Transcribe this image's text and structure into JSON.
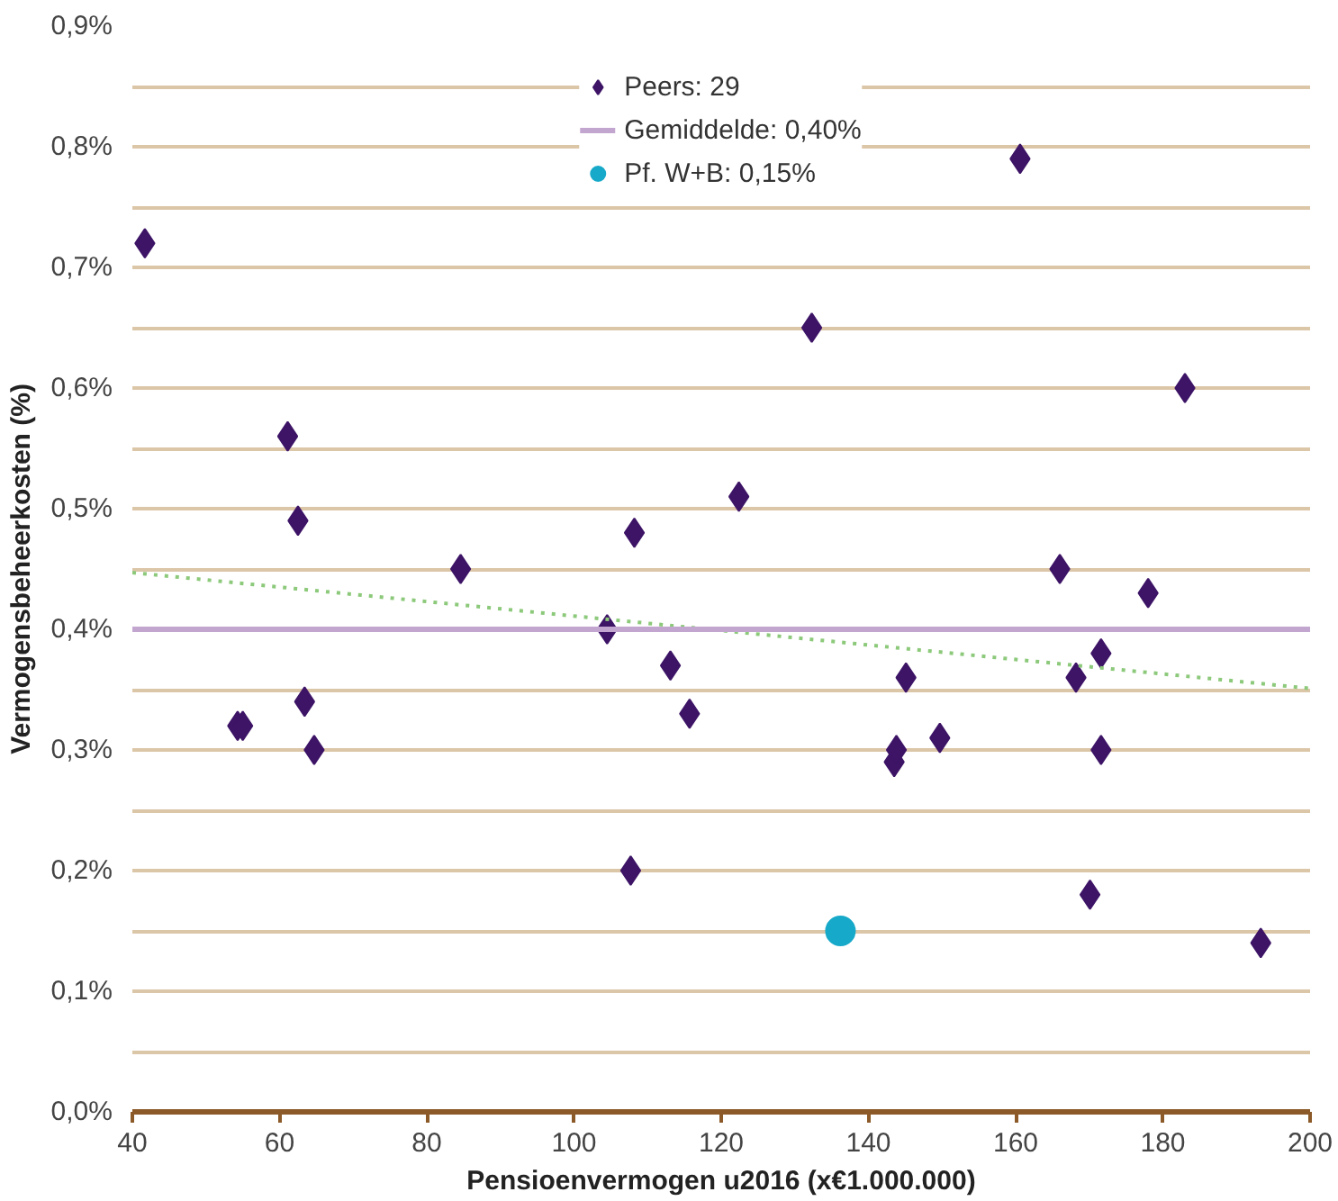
{
  "chart_data": {
    "type": "scatter",
    "xlabel": "Pensioenvermogen u2016 (x€1.000.000)",
    "ylabel": "Vermogensbeheerkosten (%)",
    "xlim": [
      40,
      200
    ],
    "xticks": [
      40,
      60,
      80,
      100,
      120,
      140,
      160,
      180,
      200
    ],
    "ylim": [
      0,
      0.9
    ],
    "yticks": [
      {
        "value": 0,
        "label": "0,0%"
      },
      {
        "value": 0.05,
        "label": null
      },
      {
        "value": 0.1,
        "label": "0,1%"
      },
      {
        "value": 0.15,
        "label": null
      },
      {
        "value": 0.2,
        "label": "0,2%"
      },
      {
        "value": 0.25,
        "label": null
      },
      {
        "value": 0.3,
        "label": "0,3%"
      },
      {
        "value": 0.35,
        "label": null
      },
      {
        "value": 0.4,
        "label": "0,4%"
      },
      {
        "value": 0.45,
        "label": null
      },
      {
        "value": 0.5,
        "label": "0,5%"
      },
      {
        "value": 0.55,
        "label": null
      },
      {
        "value": 0.6,
        "label": "0,6%"
      },
      {
        "value": 0.65,
        "label": null
      },
      {
        "value": 0.7,
        "label": "0,7%"
      },
      {
        "value": 0.75,
        "label": null
      },
      {
        "value": 0.8,
        "label": "0,8%"
      },
      {
        "value": 0.85,
        "label": null
      },
      {
        "value": 0.9,
        "label": "0,9%"
      }
    ],
    "grid": "y",
    "legend": "top",
    "series": [
      {
        "name": "Peers: 29",
        "marker": "diamond",
        "color": "#3d1466",
        "x": [
          41.7,
          61.1,
          62.5,
          54.3,
          55.0,
          63.4,
          64.7,
          84.6,
          104.5,
          108.2,
          107.7,
          113.1,
          115.7,
          122.4,
          132.3,
          143.5,
          143.8,
          145.1,
          149.7,
          160.6,
          166.0,
          168.2,
          170.1,
          171.6,
          171.6,
          178.0,
          183.0,
          193.3
        ],
        "values": [
          0.72,
          0.56,
          0.49,
          0.32,
          0.32,
          0.34,
          0.3,
          0.45,
          0.4,
          0.48,
          0.2,
          0.37,
          0.33,
          0.51,
          0.65,
          0.29,
          0.3,
          0.36,
          0.31,
          0.79,
          0.45,
          0.36,
          0.18,
          0.38,
          0.3,
          0.43,
          0.6,
          0.14
        ]
      },
      {
        "name": "Pf. W+B: 0,15%",
        "marker": "circle",
        "color": "#17a9c9",
        "x": [
          136.2
        ],
        "values": [
          0.15
        ]
      },
      {
        "type": "line",
        "line_style": "dotted",
        "color": "#8cc97a",
        "x": [
          40,
          200
        ],
        "values": [
          0.447,
          0.351
        ]
      }
    ],
    "ref_lines": [
      {
        "axis": "y",
        "value": 0.4,
        "label": "Gemiddelde: 0,40%",
        "color": "#c3a6d0"
      }
    ]
  }
}
